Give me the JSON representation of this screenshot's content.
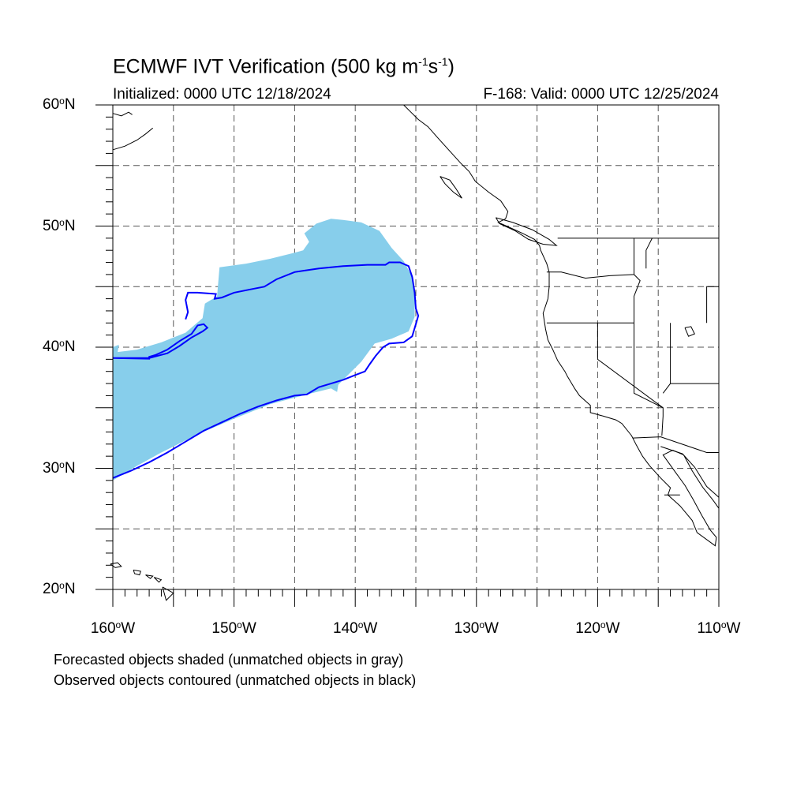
{
  "title": {
    "text": "ECMWF IVT Verification (500 kg m",
    "exp1": "-1",
    "mid": "s",
    "exp2": "-1",
    "close": ")"
  },
  "init_label": "Initialized: 0000 UTC 12/18/2024",
  "valid_label": "F-168: Valid: 0000 UTC 12/25/2024",
  "map": {
    "lon_range": [
      -160,
      -110
    ],
    "lat_range": [
      20,
      60
    ],
    "lat_ticks": [
      {
        "value": 60,
        "num": "60",
        "hemi": "N"
      },
      {
        "value": 50,
        "num": "50",
        "hemi": "N"
      },
      {
        "value": 40,
        "num": "40",
        "hemi": "N"
      },
      {
        "value": 30,
        "num": "30",
        "hemi": "N"
      },
      {
        "value": 20,
        "num": "20",
        "hemi": "N"
      }
    ],
    "lon_ticks": [
      {
        "value": -160,
        "num": "160",
        "hemi": "W"
      },
      {
        "value": -150,
        "num": "150",
        "hemi": "W"
      },
      {
        "value": -140,
        "num": "140",
        "hemi": "W"
      },
      {
        "value": -130,
        "num": "130",
        "hemi": "W"
      },
      {
        "value": -120,
        "num": "120",
        "hemi": "W"
      },
      {
        "value": -110,
        "num": "110",
        "hemi": "W"
      }
    ],
    "forecast_color": "#87ceeb",
    "observed_color": "#0000ff",
    "forecast_object": [
      [
        -160,
        38.3
      ],
      [
        -160,
        40
      ],
      [
        -159.5,
        40.2
      ],
      [
        -159.6,
        39.6
      ],
      [
        -158,
        39.8
      ],
      [
        -156,
        40.4
      ],
      [
        -154,
        41.2
      ],
      [
        -152.6,
        42.4
      ],
      [
        -152.4,
        43.6
      ],
      [
        -151.4,
        44.2
      ],
      [
        -151.2,
        46.6
      ],
      [
        -149,
        46.9
      ],
      [
        -147,
        47.3
      ],
      [
        -145,
        47.8
      ],
      [
        -144.3,
        48
      ],
      [
        -143.8,
        48.7
      ],
      [
        -144.2,
        49.4
      ],
      [
        -143.2,
        50.2
      ],
      [
        -142,
        50.6
      ],
      [
        -141,
        50.5
      ],
      [
        -140.2,
        50.4
      ],
      [
        -139.5,
        50.3
      ],
      [
        -138,
        49.6
      ],
      [
        -137,
        48.2
      ],
      [
        -136,
        47.1
      ],
      [
        -135.4,
        46
      ],
      [
        -135.1,
        44.5
      ],
      [
        -135.1,
        42.5
      ],
      [
        -135.6,
        41.3
      ],
      [
        -137,
        40.7
      ],
      [
        -138.4,
        40.3
      ],
      [
        -139.5,
        38.8
      ],
      [
        -140.5,
        37.8
      ],
      [
        -141.4,
        36.9
      ],
      [
        -141.5,
        36.3
      ],
      [
        -142,
        36.6
      ],
      [
        -144,
        36.1
      ],
      [
        -147,
        35.3
      ],
      [
        -150,
        34.1
      ],
      [
        -153,
        32.8
      ],
      [
        -156,
        31.3
      ],
      [
        -158,
        30.2
      ],
      [
        -160,
        29
      ]
    ],
    "observed_object": [
      [
        -160,
        39.1
      ],
      [
        -157,
        39.1
      ],
      [
        -155.5,
        39.5
      ],
      [
        -154.5,
        40.1
      ],
      [
        -153.5,
        40.8
      ],
      [
        -152.6,
        41.3
      ],
      [
        -152.2,
        41.6
      ],
      [
        -152.5,
        41.9
      ],
      [
        -153,
        41.8
      ],
      [
        -153.5,
        41.1
      ],
      [
        -154.5,
        40.5
      ],
      [
        -155.5,
        39.8
      ],
      [
        -156.5,
        39.35
      ],
      [
        -157,
        39.2
      ],
      [
        -157,
        39.1
      ],
      [
        -157,
        39.05
      ],
      [
        -160,
        39.1
      ]
    ],
    "observed_object_main": [
      [
        -160,
        29.2
      ],
      [
        -158.5,
        29.8
      ],
      [
        -157,
        30.5
      ],
      [
        -155.5,
        31.3
      ],
      [
        -154,
        32.2
      ],
      [
        -152.5,
        33.1
      ],
      [
        -151,
        33.8
      ],
      [
        -149.5,
        34.5
      ],
      [
        -148,
        35.1
      ],
      [
        -146.5,
        35.6
      ],
      [
        -145,
        36
      ],
      [
        -144,
        36.1
      ],
      [
        -143,
        36.7
      ],
      [
        -142,
        37
      ],
      [
        -141,
        37.3
      ],
      [
        -140,
        37.7
      ],
      [
        -139.2,
        38
      ],
      [
        -138.8,
        38.6
      ],
      [
        -138.3,
        39.3
      ],
      [
        -137.7,
        40
      ],
      [
        -137.2,
        40.3
      ],
      [
        -136,
        40.4
      ],
      [
        -135.3,
        40.9
      ],
      [
        -135,
        41.9
      ],
      [
        -134.8,
        42.6
      ],
      [
        -135,
        43.2
      ],
      [
        -135.1,
        44.5
      ],
      [
        -135.3,
        45.8
      ],
      [
        -135.6,
        46.7
      ],
      [
        -136.3,
        47
      ],
      [
        -137.2,
        47
      ],
      [
        -137.5,
        46.8
      ],
      [
        -139,
        46.8
      ],
      [
        -141,
        46.7
      ],
      [
        -143,
        46.5
      ],
      [
        -145,
        46.2
      ],
      [
        -146.5,
        45.6
      ],
      [
        -147.5,
        45
      ],
      [
        -148.5,
        44.8
      ],
      [
        -150,
        44.5
      ],
      [
        -151,
        44.1
      ],
      [
        -151.6,
        44
      ],
      [
        -151.5,
        44.4
      ],
      [
        -153,
        44.5
      ],
      [
        -153.8,
        44.5
      ],
      [
        -154,
        43.9
      ],
      [
        -153.8,
        42.9
      ],
      [
        -154,
        42.3
      ]
    ]
  },
  "notes": {
    "line1": "Forecasted objects shaded (unmatched objects in gray)",
    "line2": "Observed objects contoured (unmatched objects in black)"
  }
}
